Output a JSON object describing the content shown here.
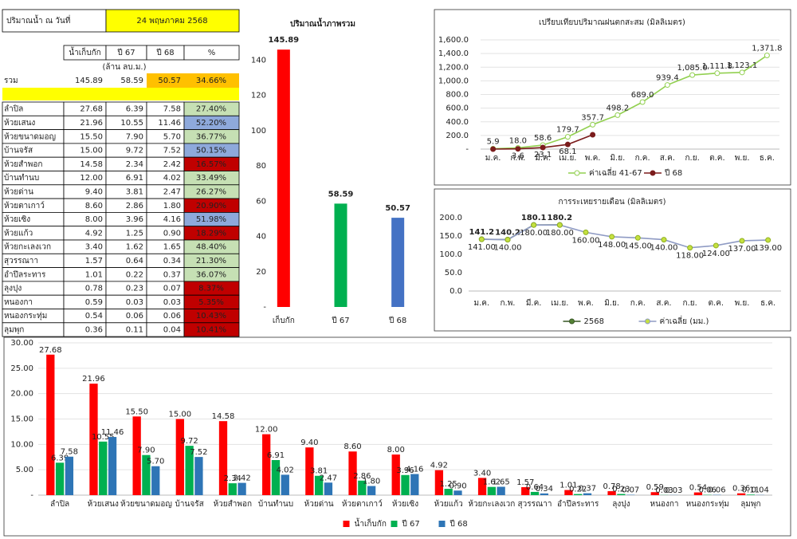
{
  "table": {
    "header": {
      "label": "ปริมาณน้ำ ณ วันที่",
      "date": "24 พฤษภาคม 2568"
    },
    "columns": [
      "น้ำเก็บกัก",
      "ปี 67",
      "ปี 68",
      "%"
    ],
    "unit": "(ล้าน ลบ.ม.)",
    "total": {
      "name": "รวม",
      "values": [
        "145.89",
        "58.59",
        "50.57",
        "34.66%"
      ]
    },
    "rows": [
      [
        "ลำปิล",
        "27.68",
        "6.39",
        "7.58",
        "27.40%"
      ],
      [
        "ห้วยเสนง",
        "21.96",
        "10.55",
        "11.46",
        "52.20%"
      ],
      [
        "ห้วยขนาดมอญ",
        "15.50",
        "7.90",
        "5.70",
        "36.77%"
      ],
      [
        "บ้านจรัส",
        "15.00",
        "9.72",
        "7.52",
        "50.15%"
      ],
      [
        "ห้วยสำพอก",
        "14.58",
        "2.34",
        "2.42",
        "16.57%"
      ],
      [
        "บ้านทำนบ",
        "12.00",
        "6.91",
        "4.02",
        "33.49%"
      ],
      [
        "ห้วยด่าน",
        "9.40",
        "3.81",
        "2.47",
        "26.27%"
      ],
      [
        "ห้วยตาเกาว์",
        "8.60",
        "2.86",
        "1.80",
        "20.90%"
      ],
      [
        "ห้วยเซิง",
        "8.00",
        "3.96",
        "4.16",
        "51.98%"
      ],
      [
        "ห้วยแก้ว",
        "4.92",
        "1.25",
        "0.90",
        "18.29%"
      ],
      [
        "ห้วยกะเลงเวก",
        "3.40",
        "1.62",
        "1.65",
        "48.40%"
      ],
      [
        "สุวรรณาา",
        "1.57",
        "0.64",
        "0.34",
        "21.30%"
      ],
      [
        "อำปึลระทาร",
        "1.01",
        "0.22",
        "0.37",
        "36.07%"
      ],
      [
        "ลุงปุง",
        "0.78",
        "0.23",
        "0.07",
        "8.37%"
      ],
      [
        "หนองกา",
        "0.59",
        "0.03",
        "0.03",
        "5.35%"
      ],
      [
        "หนองกระทุ่ม",
        "0.54",
        "0.06",
        "0.06",
        "10.43%"
      ],
      [
        "ลุมพุก",
        "0.36",
        "0.11",
        "0.04",
        "10.41%"
      ]
    ],
    "pct_colors": [
      "#c6e0b4",
      "#8ea9db",
      "#c6e0b4",
      "#8ea9db",
      "#c00000",
      "#c6e0b4",
      "#c6e0b4",
      "#c00000",
      "#8ea9db",
      "#c00000",
      "#c6e0b4",
      "#c6e0b4",
      "#c6e0b4",
      "#c00000",
      "#c00000",
      "#c00000",
      "#c00000"
    ]
  },
  "chart_data": [
    {
      "type": "bar",
      "title": "ปริมาณน้ำภาพรวม",
      "categories": [
        "เก็บกัก",
        "ปี 67",
        "ปี 68"
      ],
      "values": [
        145.89,
        58.59,
        50.57
      ],
      "colors": [
        "#ff0000",
        "#00b050",
        "#4472c4"
      ],
      "ylim": [
        0,
        160
      ],
      "yticks": [
        {
          "value": 0,
          "label": "-"
        },
        20,
        40,
        60,
        80,
        100,
        120,
        140
      ],
      "grid": false
    },
    {
      "type": "line",
      "title": "เปรียบเทียบปริมาณฝนตกสะสม (มิลลิเมตร)",
      "categories": [
        "ม.ค.",
        "ก.พ.",
        "มี.ค.",
        "เม.ย.",
        "พ.ค.",
        "มิ.ย.",
        "ก.ค.",
        "ส.ค.",
        "ก.ย.",
        "ต.ค.",
        "พ.ย.",
        "ธ.ค."
      ],
      "series": [
        {
          "name": "ค่าเฉลี่ย 41-67",
          "color": "#92d050",
          "marker_fill": "#ffffff",
          "values": [
            5.9,
            18.0,
            58.6,
            179.7,
            357.7,
            498.2,
            689.0,
            939.4,
            1085.0,
            1111.8,
            1123.1,
            1371.8
          ],
          "value_labels": [
            "5.9",
            "18.0",
            "58.6",
            "179.7",
            "357.7",
            "498.2",
            "689.0",
            "939.4",
            "1,085.0",
            "1,111.8",
            "1,123.1",
            "1,371.8"
          ]
        },
        {
          "name": "ปี 68",
          "color": "#7b1c1c",
          "marker_fill": "#7b1c1c",
          "values": [
            0,
            3.6,
            23.1,
            68.1,
            210,
            null,
            null,
            null,
            null,
            null,
            null,
            null
          ],
          "value_labels": [
            null,
            "3.6",
            "23.1",
            "68.1",
            null,
            null,
            null,
            null,
            null,
            null,
            null,
            null
          ]
        }
      ],
      "ylim": [
        0,
        1600
      ],
      "yticks": [
        {
          "value": 0,
          "label": "-"
        },
        {
          "value": 200,
          "label": "200.0"
        },
        {
          "value": 400,
          "label": "400.0"
        },
        {
          "value": 600,
          "label": "600.0"
        },
        {
          "value": 800,
          "label": "800.0"
        },
        {
          "value": 1000,
          "label": "1,000.0"
        },
        {
          "value": 1200,
          "label": "1,200.0"
        },
        {
          "value": 1400,
          "label": "1,400.0"
        },
        {
          "value": 1600,
          "label": "1,600.0"
        }
      ],
      "grid": true,
      "legend": "bottom"
    },
    {
      "type": "line",
      "title": "การระเหยรายเดือน (มิลลิเมตร)",
      "categories": [
        "ม.ค.",
        "ก.พ.",
        "มี.ค.",
        "เม.ย.",
        "พ.ค.",
        "มิ.ย.",
        "ก.ค.",
        "ส.ค.",
        "ก.ย.",
        "ต.ค.",
        "พ.ย.",
        "ธ.ค."
      ],
      "series": [
        {
          "name": "2568",
          "color": "#375623",
          "marker_fill": "#548235",
          "values": [
            141.2,
            140.2,
            180.1,
            180.2,
            null,
            null,
            null,
            null,
            null,
            null,
            null,
            null
          ],
          "value_labels": [
            "141.2",
            "140.2",
            "180.1",
            "180.2",
            null,
            null,
            null,
            null,
            null,
            null,
            null,
            null
          ]
        },
        {
          "name": "ค่าเฉลี่ย (มม.)",
          "color": "#8f9bc4",
          "marker_fill": "#c5e040",
          "values": [
            141,
            140,
            180,
            180,
            160,
            148,
            145,
            140,
            118,
            124,
            137,
            139
          ],
          "value_labels": [
            "141.00",
            "140.00",
            "180.00",
            "180.00",
            "160.00",
            "148.00",
            "145.00",
            "140.00",
            "118.00",
            "124.00",
            "137.00",
            "139.00"
          ]
        }
      ],
      "ylim": [
        0,
        200
      ],
      "yticks": [
        {
          "value": 0,
          "label": "0.0"
        },
        {
          "value": 50,
          "label": "50.0"
        },
        {
          "value": 100,
          "label": "100.0"
        },
        {
          "value": 150,
          "label": "150.0"
        },
        {
          "value": 200,
          "label": "200.0"
        }
      ],
      "grid": false,
      "legend": "bottom"
    },
    {
      "type": "groupbar",
      "categories": [
        "ลำปิล",
        "ห้วยเสนง",
        "ห้วยขนาดมอญ",
        "บ้านจรัส",
        "ห้วยสำพอก",
        "บ้านทำนบ",
        "ห้วยด่าน",
        "ห้วยตาเกาว์",
        "ห้วยเซิง",
        "ห้วยแก้ว",
        "ห้วยกะเลงเวก",
        "สุวรรณาา",
        "อำปึลระทาร",
        "ลุงปุง",
        "หนองกา",
        "หนองกระทุ่ม",
        "ลุมพุก"
      ],
      "series": [
        {
          "name": "น้ำเก็บกัก",
          "color": "#ff0000",
          "values": [
            27.68,
            21.96,
            15.5,
            15.0,
            14.58,
            12.0,
            9.4,
            8.6,
            8.0,
            4.92,
            3.4,
            1.57,
            1.01,
            0.78,
            0.59,
            0.54,
            0.36
          ],
          "value_labels": [
            "27.68",
            "21.96",
            "15.50",
            "15.00",
            "14.58",
            "12.00",
            "9.40",
            "8.60",
            "8.00",
            "4.92",
            "3.40",
            "1.57",
            "1.01",
            "0.78",
            "0.59",
            "0.54",
            "0.36"
          ]
        },
        {
          "name": "ปี 67",
          "color": "#00b050",
          "values": [
            6.39,
            10.55,
            7.9,
            9.72,
            2.34,
            6.91,
            3.81,
            2.86,
            3.96,
            1.25,
            1.62,
            0.64,
            0.22,
            0.23,
            0.03,
            0.06,
            0.11
          ],
          "value_labels": [
            "6.39",
            "10.55",
            "7.90",
            "9.72",
            "2.34",
            "6.91",
            "3.81",
            "2.86",
            "3.96",
            "1.25",
            "1.62",
            "0.64",
            "0.22",
            "0.23",
            "0.03",
            "0.06",
            "0.11"
          ]
        },
        {
          "name": "ปี 68",
          "color": "#2e75b6",
          "values": [
            7.58,
            11.46,
            5.7,
            7.52,
            2.42,
            4.02,
            2.47,
            1.8,
            4.16,
            0.9,
            1.65,
            0.34,
            0.37,
            0.07,
            0.03,
            0.06,
            0.04
          ],
          "value_labels": [
            "7.58",
            "11.46",
            "5.70",
            "7.52",
            "2.42",
            "4.02",
            "2.47",
            "1.80",
            "4.16",
            "0.90",
            "1.65",
            "0.34",
            "0.37",
            "0.07",
            "0.03",
            "0.06",
            "0.04"
          ]
        }
      ],
      "ylim": [
        0,
        30
      ],
      "yticks": [
        {
          "value": 0,
          "label": "-"
        },
        {
          "value": 5,
          "label": "5.00"
        },
        {
          "value": 10,
          "label": "10.00"
        },
        {
          "value": 15,
          "label": "15.00"
        },
        {
          "value": 20,
          "label": "20.00"
        },
        {
          "value": 25,
          "label": "25.00"
        },
        {
          "value": 30,
          "label": "30.00"
        }
      ],
      "grid": true,
      "legend": "bottom"
    }
  ]
}
